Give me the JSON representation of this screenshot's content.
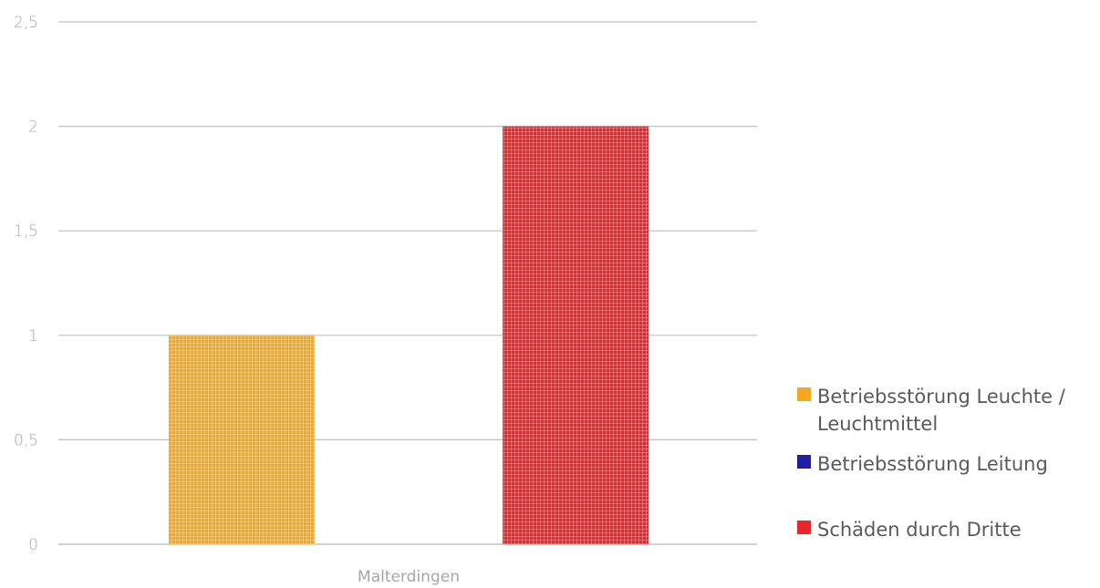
{
  "chart_data": {
    "type": "bar",
    "categories": [
      "Malterdingen"
    ],
    "series": [
      {
        "name": "Betriebsstörung Leuchte / Leuchtmittel",
        "values": [
          1
        ],
        "color": "#f5a623"
      },
      {
        "name": "Betriebsstörung Leitung",
        "values": [
          0
        ],
        "color": "#1f1f9f"
      },
      {
        "name": "Schäden durch Dritte",
        "values": [
          2
        ],
        "color": "#e8262b"
      }
    ],
    "ylim": [
      0,
      2.5
    ],
    "yticks": [
      "0",
      "0,5",
      "1",
      "1,5",
      "2",
      "2,5"
    ],
    "ytick_values": [
      0,
      0.5,
      1,
      1.5,
      2,
      2.5
    ],
    "grid": true,
    "legend_position": "right",
    "title": "",
    "xlabel": "",
    "ylabel": ""
  }
}
